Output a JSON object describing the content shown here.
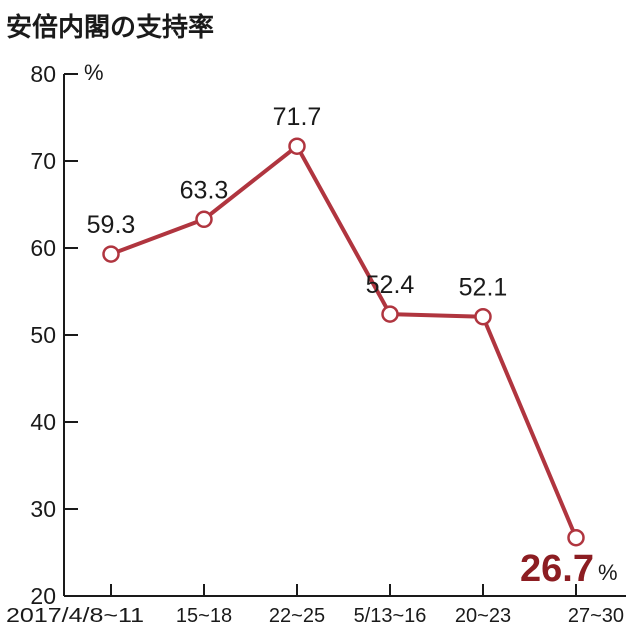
{
  "chart_data": {
    "type": "line",
    "title": "安倍内閣の支持率",
    "ylabel": "%",
    "ylim": [
      20,
      80
    ],
    "yticks": [
      20,
      30,
      40,
      50,
      60,
      70,
      80
    ],
    "categories": [
      "2017/4/8~11",
      "15~18",
      "22~25",
      "5/13~16",
      "20~23",
      "27~30"
    ],
    "series": [
      {
        "values": [
          59.3,
          63.3,
          71.7,
          52.4,
          52.1,
          26.7
        ]
      }
    ],
    "data_labels": [
      "59.3",
      "63.3",
      "71.7",
      "52.4",
      "52.1",
      "26.7"
    ],
    "highlight_unit": "%",
    "grid": false,
    "colors": {
      "line": "#b0353f",
      "highlight_text": "#8c1d22",
      "axis": "#1a1a1a"
    }
  }
}
